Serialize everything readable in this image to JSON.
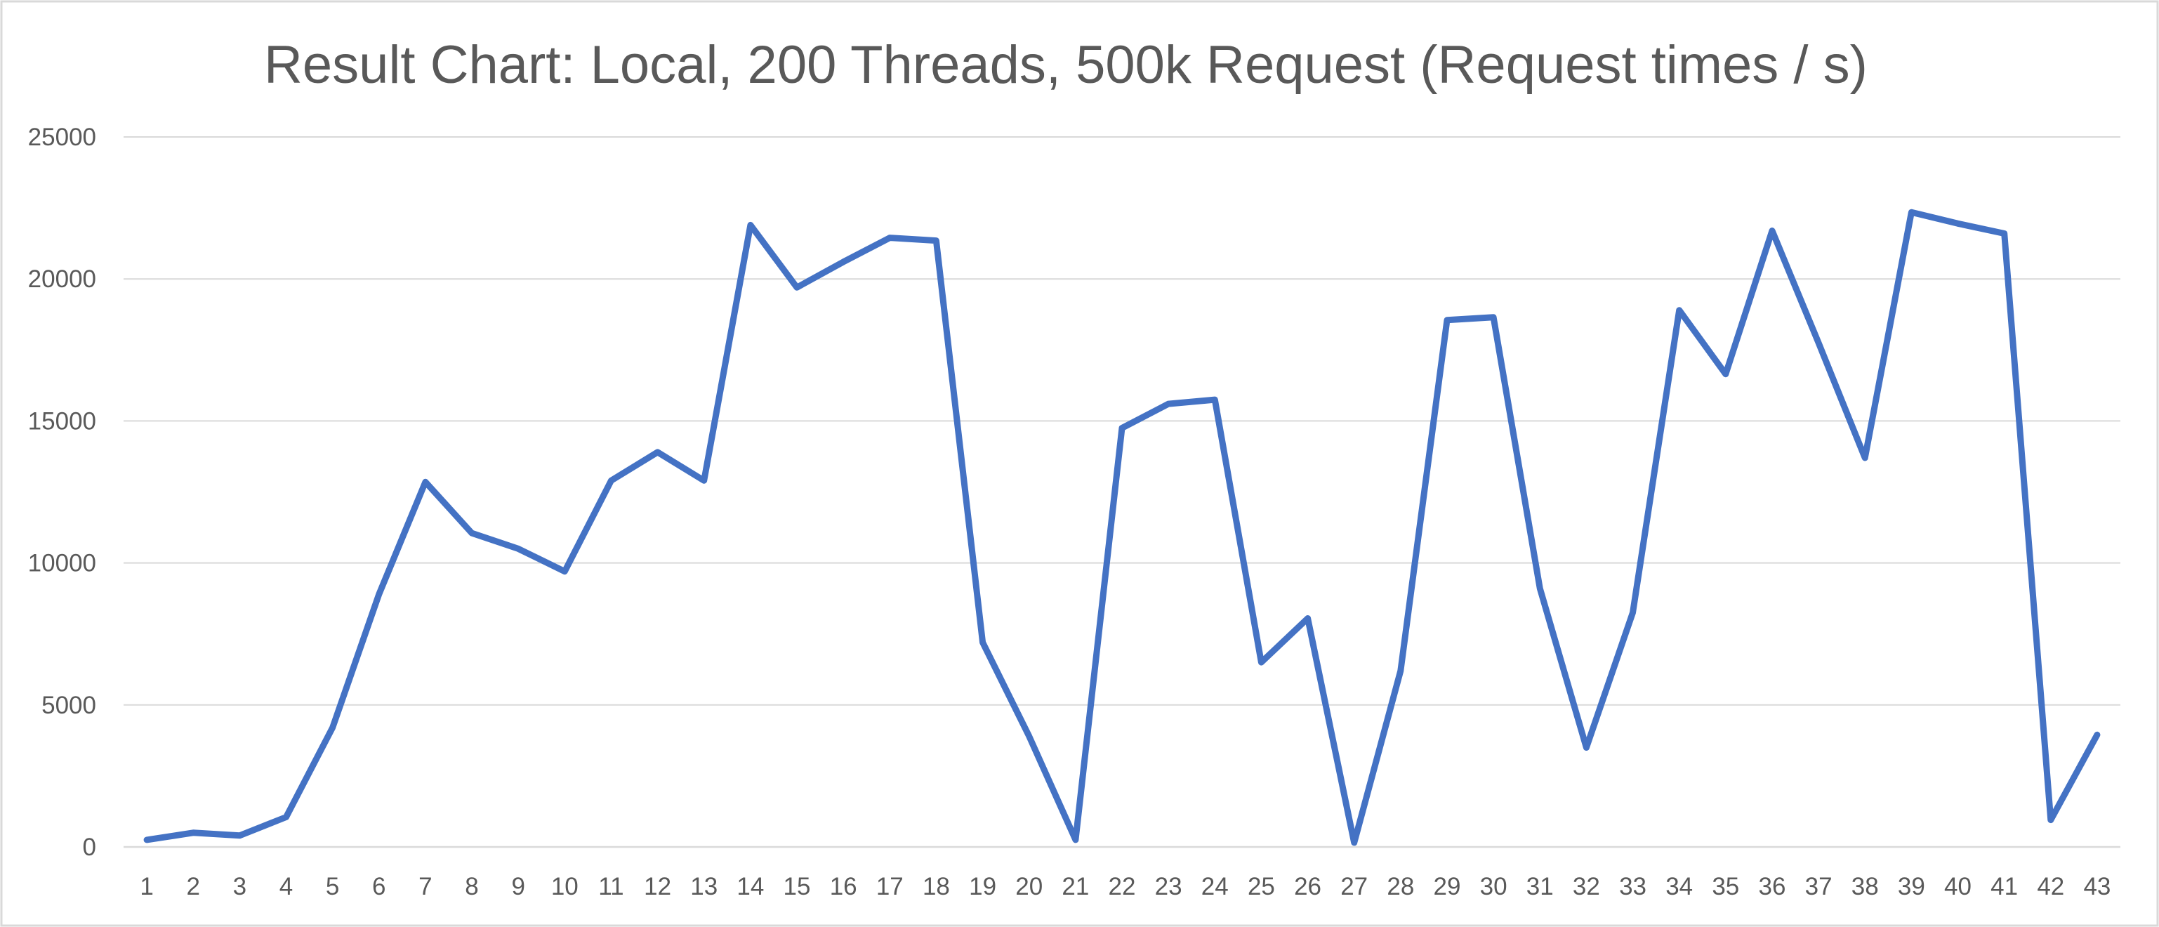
{
  "chart_data": {
    "type": "line",
    "title": "Result Chart: Local, 200 Threads, 500k Request (Request times / s)",
    "xlabel": "",
    "ylabel": "",
    "ylim": [
      0,
      25000
    ],
    "y_ticks": [
      0,
      5000,
      10000,
      15000,
      20000,
      25000
    ],
    "y_tick_labels": [
      "0",
      "5000",
      "10000",
      "15000",
      "20000",
      "25000"
    ],
    "gridlines": true,
    "legend": "none",
    "categories": [
      "1",
      "2",
      "3",
      "4",
      "5",
      "6",
      "7",
      "8",
      "9",
      "10",
      "11",
      "12",
      "13",
      "14",
      "15",
      "16",
      "17",
      "18",
      "19",
      "20",
      "21",
      "22",
      "23",
      "24",
      "25",
      "26",
      "27",
      "28",
      "29",
      "30",
      "31",
      "32",
      "33",
      "34",
      "35",
      "36",
      "37",
      "38",
      "39",
      "40",
      "41",
      "42",
      "43"
    ],
    "series": [
      {
        "name": "Request times / s",
        "color": "#4472c4",
        "values": [
          250,
          500,
          400,
          1050,
          4200,
          8900,
          12850,
          11050,
          10500,
          9700,
          12900,
          13900,
          12900,
          21900,
          19700,
          20600,
          21450,
          21350,
          7200,
          3900,
          250,
          14750,
          15600,
          15750,
          6500,
          8050,
          150,
          6200,
          18550,
          18650,
          9100,
          3500,
          8250,
          18900,
          16650,
          21700,
          17750,
          13700,
          22350,
          21950,
          21600,
          950,
          3950
        ]
      }
    ]
  },
  "colors": {
    "series": "#4472c4",
    "grid": "#d9d9d9",
    "text": "#595959",
    "background": "#ffffff"
  }
}
